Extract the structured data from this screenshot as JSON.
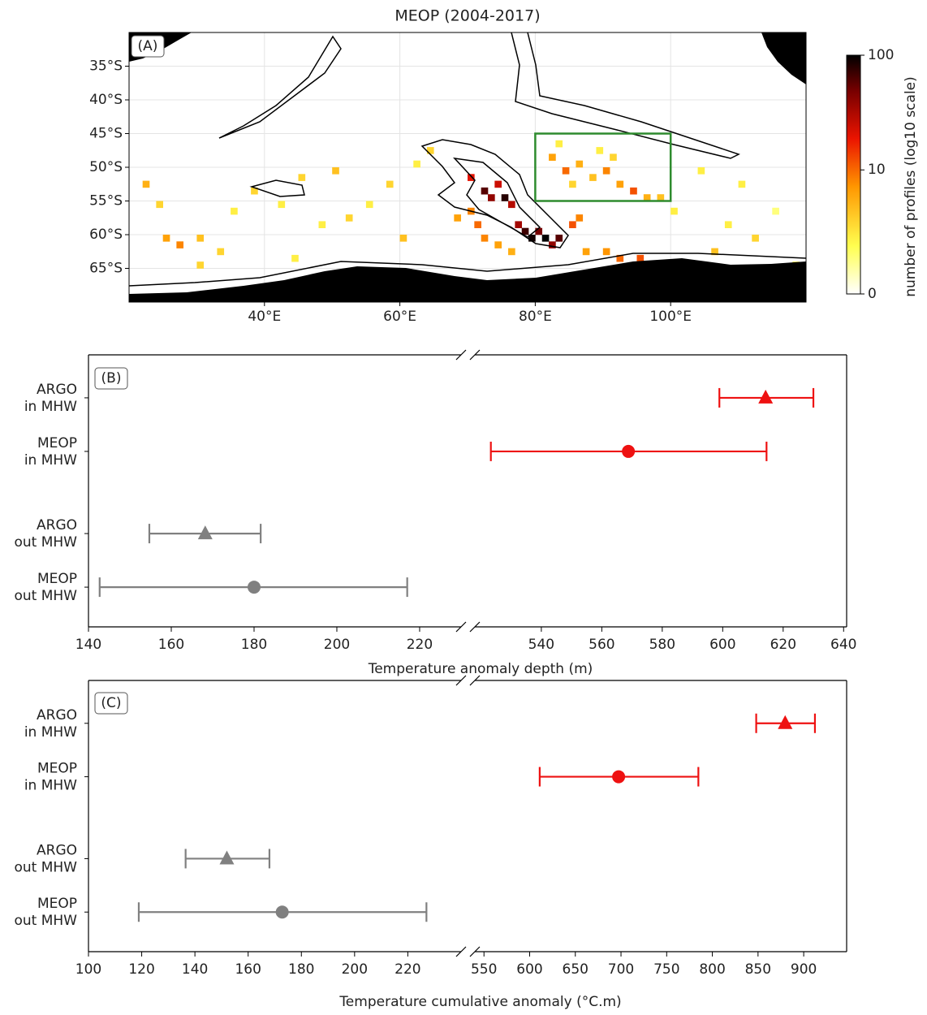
{
  "chart_data": [
    {
      "type": "heatmap",
      "title": "MEOP (2004-2017)",
      "panel_label": "(A)",
      "xlim": [
        20,
        120
      ],
      "ylim": [
        -70,
        -30
      ],
      "xticks": [
        {
          "value": 40,
          "label": "40°E"
        },
        {
          "value": 60,
          "label": "60°E"
        },
        {
          "value": 80,
          "label": "80°E"
        },
        {
          "value": 100,
          "label": "100°E"
        }
      ],
      "yticks": [
        {
          "value": -35,
          "label": "35°S"
        },
        {
          "value": -40,
          "label": "40°S"
        },
        {
          "value": -45,
          "label": "45°S"
        },
        {
          "value": -50,
          "label": "50°S"
        },
        {
          "value": -55,
          "label": "55°S"
        },
        {
          "value": -60,
          "label": "60°S"
        },
        {
          "value": -65,
          "label": "65°S"
        }
      ],
      "grid": true,
      "x": [
        72,
        73,
        75,
        76,
        74,
        70,
        78,
        79,
        80,
        81,
        82,
        77,
        83,
        70,
        71,
        68,
        72,
        74,
        76,
        85,
        86,
        87,
        90,
        92,
        95,
        97,
        82,
        84,
        86,
        88,
        90,
        92,
        94,
        96,
        98,
        85,
        89,
        91,
        83,
        100,
        25,
        27,
        30,
        33,
        22,
        24,
        35,
        38,
        42,
        45,
        48,
        50,
        52,
        55,
        58,
        60,
        62,
        64,
        30,
        44,
        108,
        110,
        112,
        115,
        118,
        104,
        106
      ],
      "y": [
        -53,
        -54,
        -54,
        -55,
        -52,
        -51,
        -59,
        -60,
        -59,
        -60,
        -61,
        -58,
        -60,
        -56,
        -58,
        -57,
        -60,
        -61,
        -62,
        -58,
        -57,
        -62,
        -62,
        -63,
        -63,
        -64,
        -48,
        -50,
        -49,
        -51,
        -50,
        -52,
        -53,
        -54,
        -54,
        -52,
        -47,
        -48,
        -46,
        -56,
        -60,
        -61,
        -60,
        -62,
        -52,
        -55,
        -56,
        -53,
        -55,
        -51,
        -58,
        -50,
        -57,
        -55,
        -52,
        -60,
        -49,
        -47,
        -64,
        -63,
        -58,
        -52,
        -60,
        -56,
        -64,
        -50,
        -62
      ],
      "values": [
        60,
        40,
        80,
        30,
        25,
        20,
        70,
        90,
        50,
        100,
        40,
        35,
        60,
        8,
        10,
        6,
        8,
        6,
        5,
        12,
        8,
        6,
        7,
        10,
        12,
        8,
        6,
        10,
        5,
        4,
        8,
        6,
        12,
        5,
        4,
        3,
        2,
        3,
        2,
        2,
        6,
        8,
        4,
        3,
        5,
        3,
        2,
        3,
        2,
        3,
        2,
        4,
        3,
        2,
        3,
        4,
        2,
        3,
        3,
        2,
        2,
        2,
        3,
        1,
        2,
        2,
        4
      ],
      "colorbar": {
        "label": "number of profiles (log10 scale)",
        "lim": [
          0,
          100
        ],
        "ticks": [
          0,
          10,
          100
        ],
        "scale": "log"
      },
      "region": {
        "x": [
          80,
          100
        ],
        "y": [
          -55,
          -45
        ],
        "color": "#2e8b2e"
      }
    },
    {
      "type": "errorbar",
      "panel_label": "(B)",
      "xlabel": "Temperature anomaly depth (m)",
      "categories": [
        [
          "ARGO",
          "in MHW"
        ],
        [
          "MEOP",
          "in MHW"
        ],
        [
          "ARGO",
          "out MHW"
        ],
        [
          "MEOP",
          "out MHW"
        ]
      ],
      "values": [
        614.2,
        568.8,
        168.2,
        180
      ],
      "lower": [
        598.9,
        523.3,
        154.7,
        142.7
      ],
      "upper": [
        630,
        614.5,
        181.6,
        217
      ],
      "colors": [
        "#ee1111",
        "#ee1111",
        "#808080",
        "#808080"
      ],
      "markers": [
        "triangle",
        "circle",
        "triangle",
        "circle"
      ],
      "xaxis_segments": [
        {
          "xlim": [
            140,
            230
          ],
          "xticks": [
            140,
            160,
            180,
            200,
            220
          ]
        },
        {
          "xlim": [
            518,
            641
          ],
          "xticks": [
            540,
            560,
            580,
            600,
            620,
            640
          ]
        }
      ]
    },
    {
      "type": "errorbar",
      "panel_label": "(C)",
      "xlabel": "Temperature cumulative anomaly (°C.m)",
      "categories": [
        [
          "ARGO",
          "in MHW"
        ],
        [
          "MEOP",
          "in MHW"
        ],
        [
          "ARGO",
          "out MHW"
        ],
        [
          "MEOP",
          "out MHW"
        ]
      ],
      "values": [
        879.7,
        697.4,
        152,
        172.8
      ],
      "lower": [
        848,
        611,
        136.5,
        118.9
      ],
      "upper": [
        912.3,
        784.7,
        168,
        227
      ],
      "colors": [
        "#ee1111",
        "#ee1111",
        "#808080",
        "#808080"
      ],
      "markers": [
        "triangle",
        "circle",
        "triangle",
        "circle"
      ],
      "xaxis_segments": [
        {
          "xlim": [
            100,
            240
          ],
          "xticks": [
            100,
            120,
            140,
            160,
            180,
            200,
            220
          ]
        },
        {
          "xlim": [
            540,
            947
          ],
          "xticks": [
            550,
            600,
            650,
            700,
            750,
            800,
            850,
            900
          ]
        }
      ]
    }
  ]
}
